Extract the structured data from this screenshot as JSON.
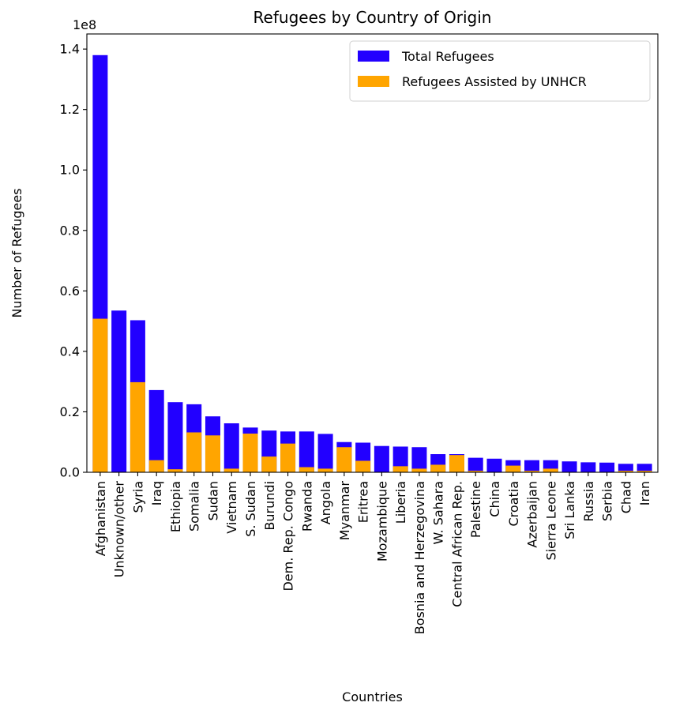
{
  "chart_data": {
    "type": "bar",
    "title": "Refugees by Country of Origin",
    "xlabel": "Countries",
    "ylabel": "Number of Refugees",
    "y_scale_label": "1e8",
    "ylim": [
      0,
      1.45
    ],
    "y_scale_factor": 100000000,
    "y_ticks": [
      0.0,
      0.2,
      0.4,
      0.6,
      0.8,
      1.0,
      1.2,
      1.4
    ],
    "y_tick_labels": [
      "0.0",
      "0.2",
      "0.4",
      "0.6",
      "0.8",
      "1.0",
      "1.2",
      "1.4"
    ],
    "grid": false,
    "legend_position": "top-right",
    "categories": [
      "Afghanistan",
      "Unknown/other",
      "Syria",
      "Iraq",
      "Ethiopia",
      "Somalia",
      "Sudan",
      "Vietnam",
      "S. Sudan",
      "Burundi",
      "Dem. Rep. Congo",
      "Rwanda",
      "Angola",
      "Myanmar",
      "Eritrea",
      "Mozambique",
      "Liberia",
      "Bosnia and Herzegovina",
      "W. Sahara",
      "Central African Rep.",
      "Palestine",
      "China",
      "Croatia",
      "Azerbaijan",
      "Sierra Leone",
      "Sri Lanka",
      "Russia",
      "Serbia",
      "Chad",
      "Iran"
    ],
    "series": [
      {
        "name": "Total Refugees",
        "color": "#2200ff",
        "values": [
          1.38,
          0.535,
          0.503,
          0.272,
          0.232,
          0.225,
          0.185,
          0.162,
          0.148,
          0.138,
          0.135,
          0.135,
          0.127,
          0.1,
          0.098,
          0.087,
          0.085,
          0.083,
          0.06,
          0.06,
          0.048,
          0.045,
          0.04,
          0.04,
          0.04,
          0.036,
          0.033,
          0.032,
          0.028,
          0.028
        ]
      },
      {
        "name": "Refugees Assisted by UNHCR",
        "color": "#ffa500",
        "values": [
          0.508,
          0.0,
          0.298,
          0.04,
          0.01,
          0.132,
          0.122,
          0.012,
          0.128,
          0.052,
          0.095,
          0.017,
          0.012,
          0.083,
          0.038,
          0.0,
          0.02,
          0.012,
          0.025,
          0.057,
          0.005,
          0.0,
          0.022,
          0.005,
          0.012,
          0.0,
          0.0,
          0.0,
          0.005,
          0.005
        ]
      }
    ]
  }
}
